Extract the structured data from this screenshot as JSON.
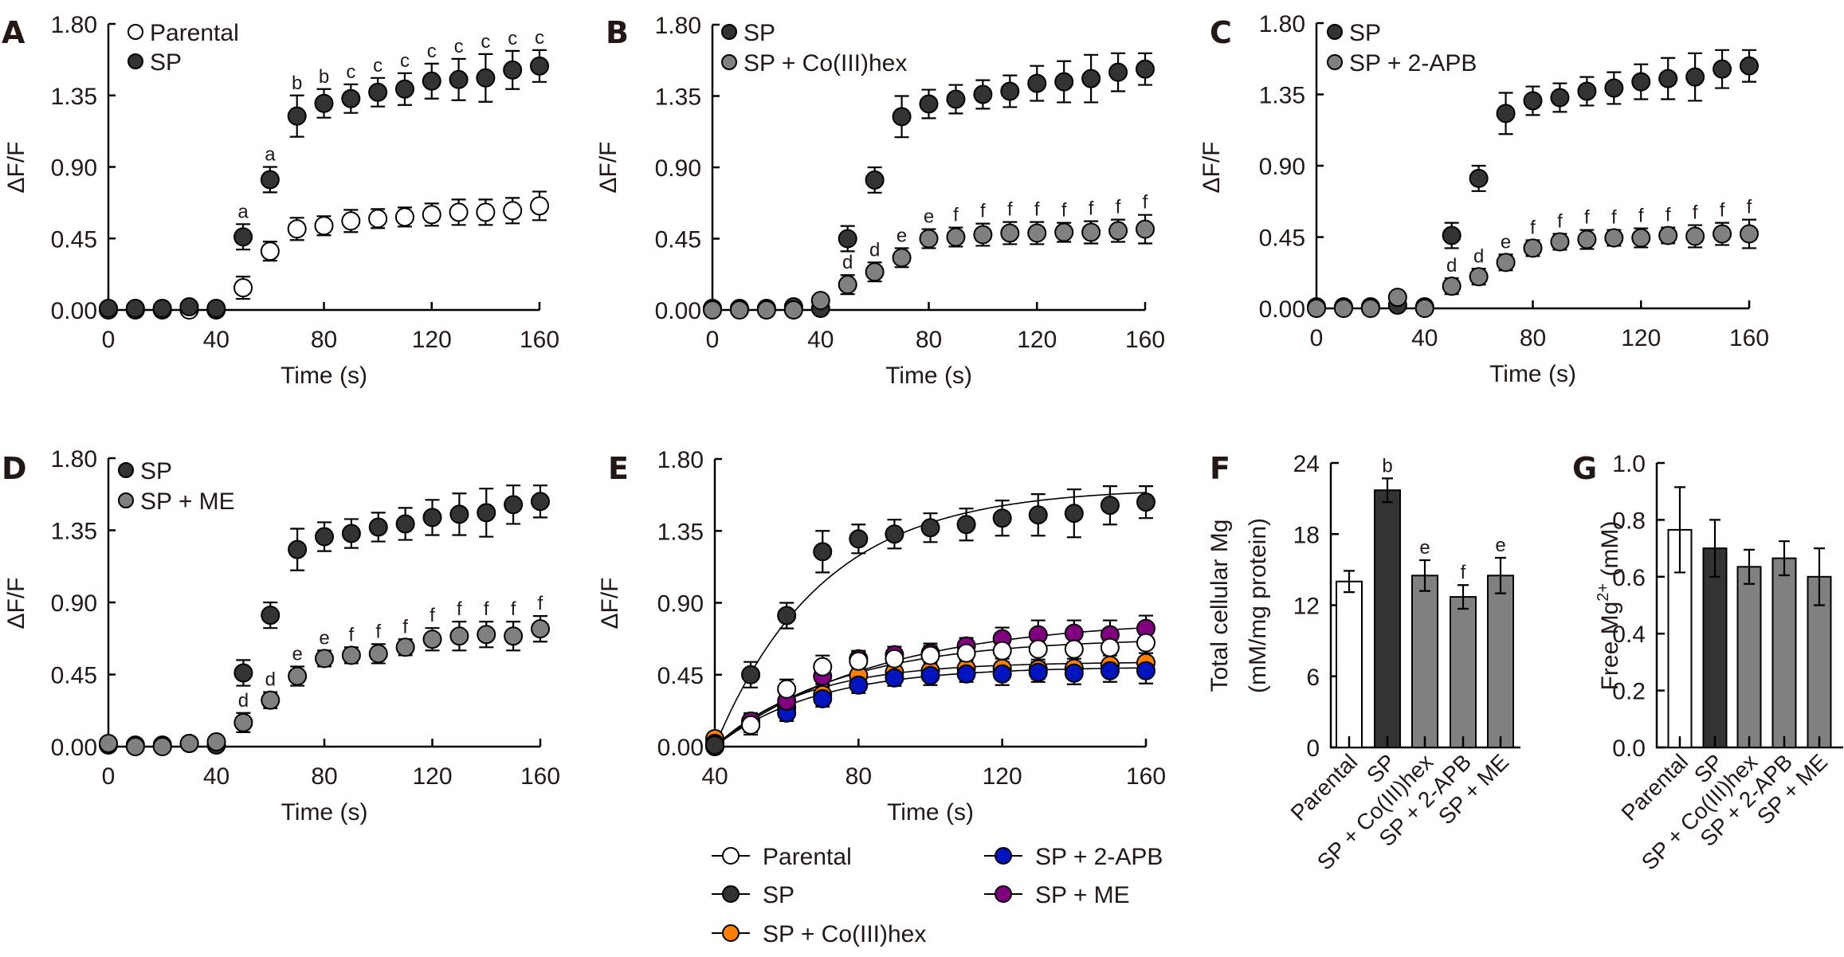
{
  "chart_data": [
    {
      "panel": "A",
      "type": "scatter",
      "xlabel": "Time (s)",
      "ylabel": "ΔF/F",
      "xlim": [
        0,
        160
      ],
      "ylim": [
        0,
        1.8
      ],
      "xticks": [
        "0",
        "40",
        "80",
        "120",
        "160"
      ],
      "yticks": [
        "0.00",
        "0.45",
        "0.90",
        "1.35",
        "1.80"
      ],
      "legend_position": "top-left",
      "x": [
        0,
        10,
        20,
        30,
        40,
        50,
        60,
        70,
        80,
        90,
        100,
        110,
        120,
        130,
        140,
        150,
        160
      ],
      "series": [
        {
          "name": "Parental",
          "color": "#ffffff",
          "values": [
            0,
            0,
            0,
            0,
            0,
            0.14,
            0.37,
            0.51,
            0.53,
            0.56,
            0.575,
            0.585,
            0.6,
            0.615,
            0.615,
            0.625,
            0.655
          ],
          "errors": [
            0,
            0,
            0,
            0,
            0,
            0.07,
            0.06,
            0.07,
            0.06,
            0.07,
            0.06,
            0.06,
            0.07,
            0.08,
            0.08,
            0.08,
            0.09
          ]
        },
        {
          "name": "SP",
          "color": "#333333",
          "values": [
            0.01,
            0.01,
            0.01,
            0.02,
            0.01,
            0.46,
            0.82,
            1.22,
            1.3,
            1.33,
            1.37,
            1.39,
            1.44,
            1.45,
            1.46,
            1.51,
            1.535
          ],
          "errors": [
            0,
            0,
            0,
            0,
            0,
            0.08,
            0.08,
            0.13,
            0.09,
            0.09,
            0.09,
            0.1,
            0.11,
            0.13,
            0.15,
            0.12,
            0.1
          ],
          "letters": [
            "",
            "",
            "",
            "",
            "",
            "a",
            "a",
            "b",
            "b",
            "c",
            "c",
            "c",
            "c",
            "c",
            "c",
            "c",
            "c"
          ]
        }
      ]
    },
    {
      "panel": "B",
      "type": "scatter",
      "xlabel": "Time (s)",
      "ylabel": "ΔF/F",
      "xlim": [
        0,
        160
      ],
      "ylim": [
        0,
        1.8
      ],
      "xticks": [
        "0",
        "40",
        "80",
        "120",
        "160"
      ],
      "yticks": [
        "0.00",
        "0.45",
        "0.90",
        "1.35",
        "1.80"
      ],
      "legend_position": "top-left",
      "x": [
        0,
        10,
        20,
        30,
        40,
        50,
        60,
        70,
        80,
        90,
        100,
        110,
        120,
        130,
        140,
        150,
        160
      ],
      "series": [
        {
          "name": "SP",
          "color": "#333333",
          "values": [
            0.01,
            0.01,
            0.01,
            0.02,
            0.01,
            0.45,
            0.82,
            1.22,
            1.3,
            1.33,
            1.36,
            1.38,
            1.43,
            1.44,
            1.46,
            1.5,
            1.52
          ],
          "errors": [
            0,
            0,
            0,
            0,
            0,
            0.08,
            0.08,
            0.13,
            0.09,
            0.09,
            0.09,
            0.1,
            0.11,
            0.13,
            0.15,
            0.12,
            0.1
          ]
        },
        {
          "name": "SP + Co(III)hex",
          "color": "#808080",
          "values": [
            0,
            0,
            0,
            0,
            0.06,
            0.16,
            0.24,
            0.33,
            0.45,
            0.46,
            0.475,
            0.485,
            0.485,
            0.49,
            0.49,
            0.5,
            0.51
          ],
          "errors": [
            0,
            0,
            0,
            0,
            0,
            0.06,
            0.06,
            0.06,
            0.06,
            0.06,
            0.07,
            0.07,
            0.07,
            0.06,
            0.07,
            0.07,
            0.09
          ],
          "letters": [
            "",
            "",
            "",
            "",
            "",
            "d",
            "d",
            "e",
            "e",
            "f",
            "f",
            "f",
            "f",
            "f",
            "f",
            "f",
            "f"
          ]
        }
      ]
    },
    {
      "panel": "C",
      "type": "scatter",
      "xlabel": "Time (s)",
      "ylabel": "ΔF/F",
      "xlim": [
        0,
        160
      ],
      "ylim": [
        0,
        1.8
      ],
      "xticks": [
        "0",
        "40",
        "80",
        "120",
        "160"
      ],
      "yticks": [
        "0.00",
        "0.45",
        "0.90",
        "1.35",
        "1.80"
      ],
      "legend_position": "top-left",
      "x": [
        0,
        10,
        20,
        30,
        40,
        50,
        60,
        70,
        80,
        90,
        100,
        110,
        120,
        130,
        140,
        150,
        160
      ],
      "series": [
        {
          "name": "SP",
          "color": "#333333",
          "values": [
            0.01,
            0.01,
            0.01,
            0.02,
            0.01,
            0.46,
            0.82,
            1.23,
            1.31,
            1.33,
            1.37,
            1.39,
            1.43,
            1.45,
            1.46,
            1.51,
            1.53
          ],
          "errors": [
            0,
            0,
            0,
            0,
            0,
            0.08,
            0.08,
            0.13,
            0.09,
            0.09,
            0.09,
            0.1,
            0.11,
            0.13,
            0.15,
            0.12,
            0.1
          ]
        },
        {
          "name": "SP + 2-APB",
          "color": "#808080",
          "values": [
            0,
            0,
            0,
            0.07,
            0,
            0.14,
            0.2,
            0.29,
            0.38,
            0.42,
            0.435,
            0.445,
            0.445,
            0.46,
            0.455,
            0.47,
            0.47
          ],
          "errors": [
            0,
            0,
            0,
            0,
            0,
            0.05,
            0.05,
            0.05,
            0.05,
            0.05,
            0.06,
            0.05,
            0.06,
            0.05,
            0.07,
            0.07,
            0.09
          ],
          "letters": [
            "",
            "",
            "",
            "",
            "",
            "d",
            "d",
            "e",
            "f",
            "f",
            "f",
            "f",
            "f",
            "f",
            "f",
            "f",
            "f"
          ]
        }
      ]
    },
    {
      "panel": "D",
      "type": "scatter",
      "xlabel": "Time (s)",
      "ylabel": "ΔF/F",
      "xlim": [
        0,
        160
      ],
      "ylim": [
        0,
        1.8
      ],
      "xticks": [
        "0",
        "40",
        "80",
        "120",
        "160"
      ],
      "yticks": [
        "0.00",
        "0.45",
        "0.90",
        "1.35",
        "1.80"
      ],
      "legend_position": "top-left",
      "x": [
        0,
        10,
        20,
        30,
        40,
        50,
        60,
        70,
        80,
        90,
        100,
        110,
        120,
        130,
        140,
        150,
        160
      ],
      "series": [
        {
          "name": "SP",
          "color": "#333333",
          "values": [
            0.01,
            0.01,
            0.01,
            0.02,
            0.01,
            0.46,
            0.82,
            1.23,
            1.31,
            1.33,
            1.37,
            1.39,
            1.43,
            1.45,
            1.46,
            1.51,
            1.53
          ],
          "errors": [
            0,
            0,
            0,
            0,
            0,
            0.08,
            0.08,
            0.13,
            0.09,
            0.09,
            0.09,
            0.1,
            0.11,
            0.13,
            0.15,
            0.12,
            0.1
          ]
        },
        {
          "name": "SP + ME",
          "color": "#808080",
          "values": [
            0.02,
            0,
            0,
            0.02,
            0.03,
            0.15,
            0.29,
            0.44,
            0.55,
            0.57,
            0.58,
            0.62,
            0.67,
            0.69,
            0.7,
            0.69,
            0.735
          ],
          "errors": [
            0,
            0,
            0,
            0,
            0,
            0.06,
            0.05,
            0.06,
            0.05,
            0.05,
            0.06,
            0.05,
            0.07,
            0.09,
            0.08,
            0.09,
            0.08
          ],
          "letters": [
            "",
            "",
            "",
            "",
            "",
            "d",
            "d",
            "e",
            "e",
            "f",
            "f",
            "f",
            "f",
            "f",
            "f",
            "f",
            "f"
          ]
        }
      ]
    },
    {
      "panel": "E",
      "type": "line",
      "xlabel": "Time (s)",
      "ylabel": "ΔF/F",
      "xlim": [
        40,
        160
      ],
      "ylim": [
        0,
        1.8
      ],
      "xticks": [
        "40",
        "80",
        "120",
        "160"
      ],
      "yticks": [
        "0.00",
        "0.45",
        "0.90",
        "1.35",
        "1.80"
      ],
      "legend_position": "bottom",
      "x": [
        40,
        50,
        60,
        70,
        80,
        90,
        100,
        110,
        120,
        130,
        140,
        150,
        160
      ],
      "series": [
        {
          "name": "SP + Co(III)hex",
          "color": "#ff8000",
          "values": [
            0.05,
            0.15,
            0.245,
            0.325,
            0.445,
            0.465,
            0.475,
            0.49,
            0.49,
            0.485,
            0.49,
            0.51,
            0.525
          ],
          "errors": [
            0,
            0.05,
            0.05,
            0.05,
            0.05,
            0.05,
            0.06,
            0.05,
            0.06,
            0.06,
            0.06,
            0.06,
            0.06
          ],
          "fit_plateau": 0.53,
          "fit_tau": 25
        },
        {
          "name": "SP + 2-APB",
          "color": "#0014c0",
          "values": [
            0.02,
            0.14,
            0.21,
            0.3,
            0.385,
            0.43,
            0.445,
            0.455,
            0.455,
            0.465,
            0.46,
            0.475,
            0.475
          ],
          "errors": [
            0,
            0.05,
            0.05,
            0.05,
            0.05,
            0.05,
            0.06,
            0.05,
            0.07,
            0.06,
            0.07,
            0.07,
            0.08
          ],
          "fit_plateau": 0.5,
          "fit_tau": 28
        },
        {
          "name": "SP + ME",
          "color": "#800080",
          "values": [
            0.02,
            0.16,
            0.285,
            0.44,
            0.55,
            0.575,
            0.585,
            0.63,
            0.675,
            0.7,
            0.71,
            0.7,
            0.74
          ],
          "errors": [
            0,
            0.05,
            0.05,
            0.05,
            0.05,
            0.05,
            0.06,
            0.05,
            0.07,
            0.09,
            0.08,
            0.09,
            0.08
          ],
          "fit_plateau": 0.8,
          "fit_tau": 45
        },
        {
          "name": "Parental",
          "color": "#ffffff",
          "values": [
            0,
            0.135,
            0.36,
            0.5,
            0.535,
            0.55,
            0.57,
            0.585,
            0.6,
            0.61,
            0.61,
            0.62,
            0.65
          ],
          "errors": [
            0,
            0.06,
            0.06,
            0.07,
            0.06,
            0.06,
            0.06,
            0.06,
            0.07,
            0.08,
            0.08,
            0.08,
            0.09
          ],
          "fit_plateau": 0.68,
          "fit_tau": 35
        },
        {
          "name": "SP",
          "color": "#333333",
          "values": [
            0.01,
            0.45,
            0.82,
            1.22,
            1.3,
            1.33,
            1.37,
            1.39,
            1.43,
            1.45,
            1.46,
            1.51,
            1.53
          ],
          "errors": [
            0,
            0.08,
            0.08,
            0.13,
            0.09,
            0.09,
            0.09,
            0.1,
            0.11,
            0.13,
            0.15,
            0.12,
            0.1
          ],
          "fit_plateau": 1.62,
          "fit_tau": 30
        }
      ],
      "legend_order": [
        "Parental",
        "SP",
        "SP + Co(III)hex",
        "SP + 2-APB",
        "SP + ME"
      ]
    },
    {
      "panel": "F",
      "type": "bar",
      "title": "",
      "xlabel": "",
      "ylabel": "Total cellular Mg",
      "ylabel2": "(mM/mg protein)",
      "ylim": [
        0,
        24
      ],
      "yticks": [
        "0",
        "6",
        "12",
        "18",
        "24"
      ],
      "categories": [
        "Parental",
        "SP",
        "SP + Co(III)hex",
        "SP + 2-APB",
        "SP + ME"
      ],
      "values": [
        14.0,
        21.7,
        14.5,
        12.7,
        14.5
      ],
      "errors": [
        0.9,
        1.0,
        1.3,
        1.0,
        1.5
      ],
      "colors": [
        "#ffffff",
        "#333333",
        "#808080",
        "#808080",
        "#808080"
      ],
      "letters": [
        "",
        "b",
        "e",
        "f",
        "e"
      ]
    },
    {
      "panel": "G",
      "type": "bar",
      "title": "",
      "xlabel": "",
      "ylabel": "Free Mg",
      "ylabel_sup": "2+",
      "ylabel_unit": " (mM)",
      "ylim": [
        0,
        1.0
      ],
      "yticks": [
        "0.0",
        "0.2",
        "0.4",
        "0.6",
        "0.8",
        "1.0"
      ],
      "categories": [
        "Parental",
        "SP",
        "SP + Co(III)hex",
        "SP + 2-APB",
        "SP + ME"
      ],
      "values": [
        0.765,
        0.7,
        0.635,
        0.665,
        0.6
      ],
      "errors": [
        0.15,
        0.1,
        0.06,
        0.06,
        0.1
      ],
      "colors": [
        "#ffffff",
        "#333333",
        "#808080",
        "#808080",
        "#808080"
      ],
      "letters": [
        "",
        "",
        "",
        "",
        ""
      ]
    }
  ]
}
